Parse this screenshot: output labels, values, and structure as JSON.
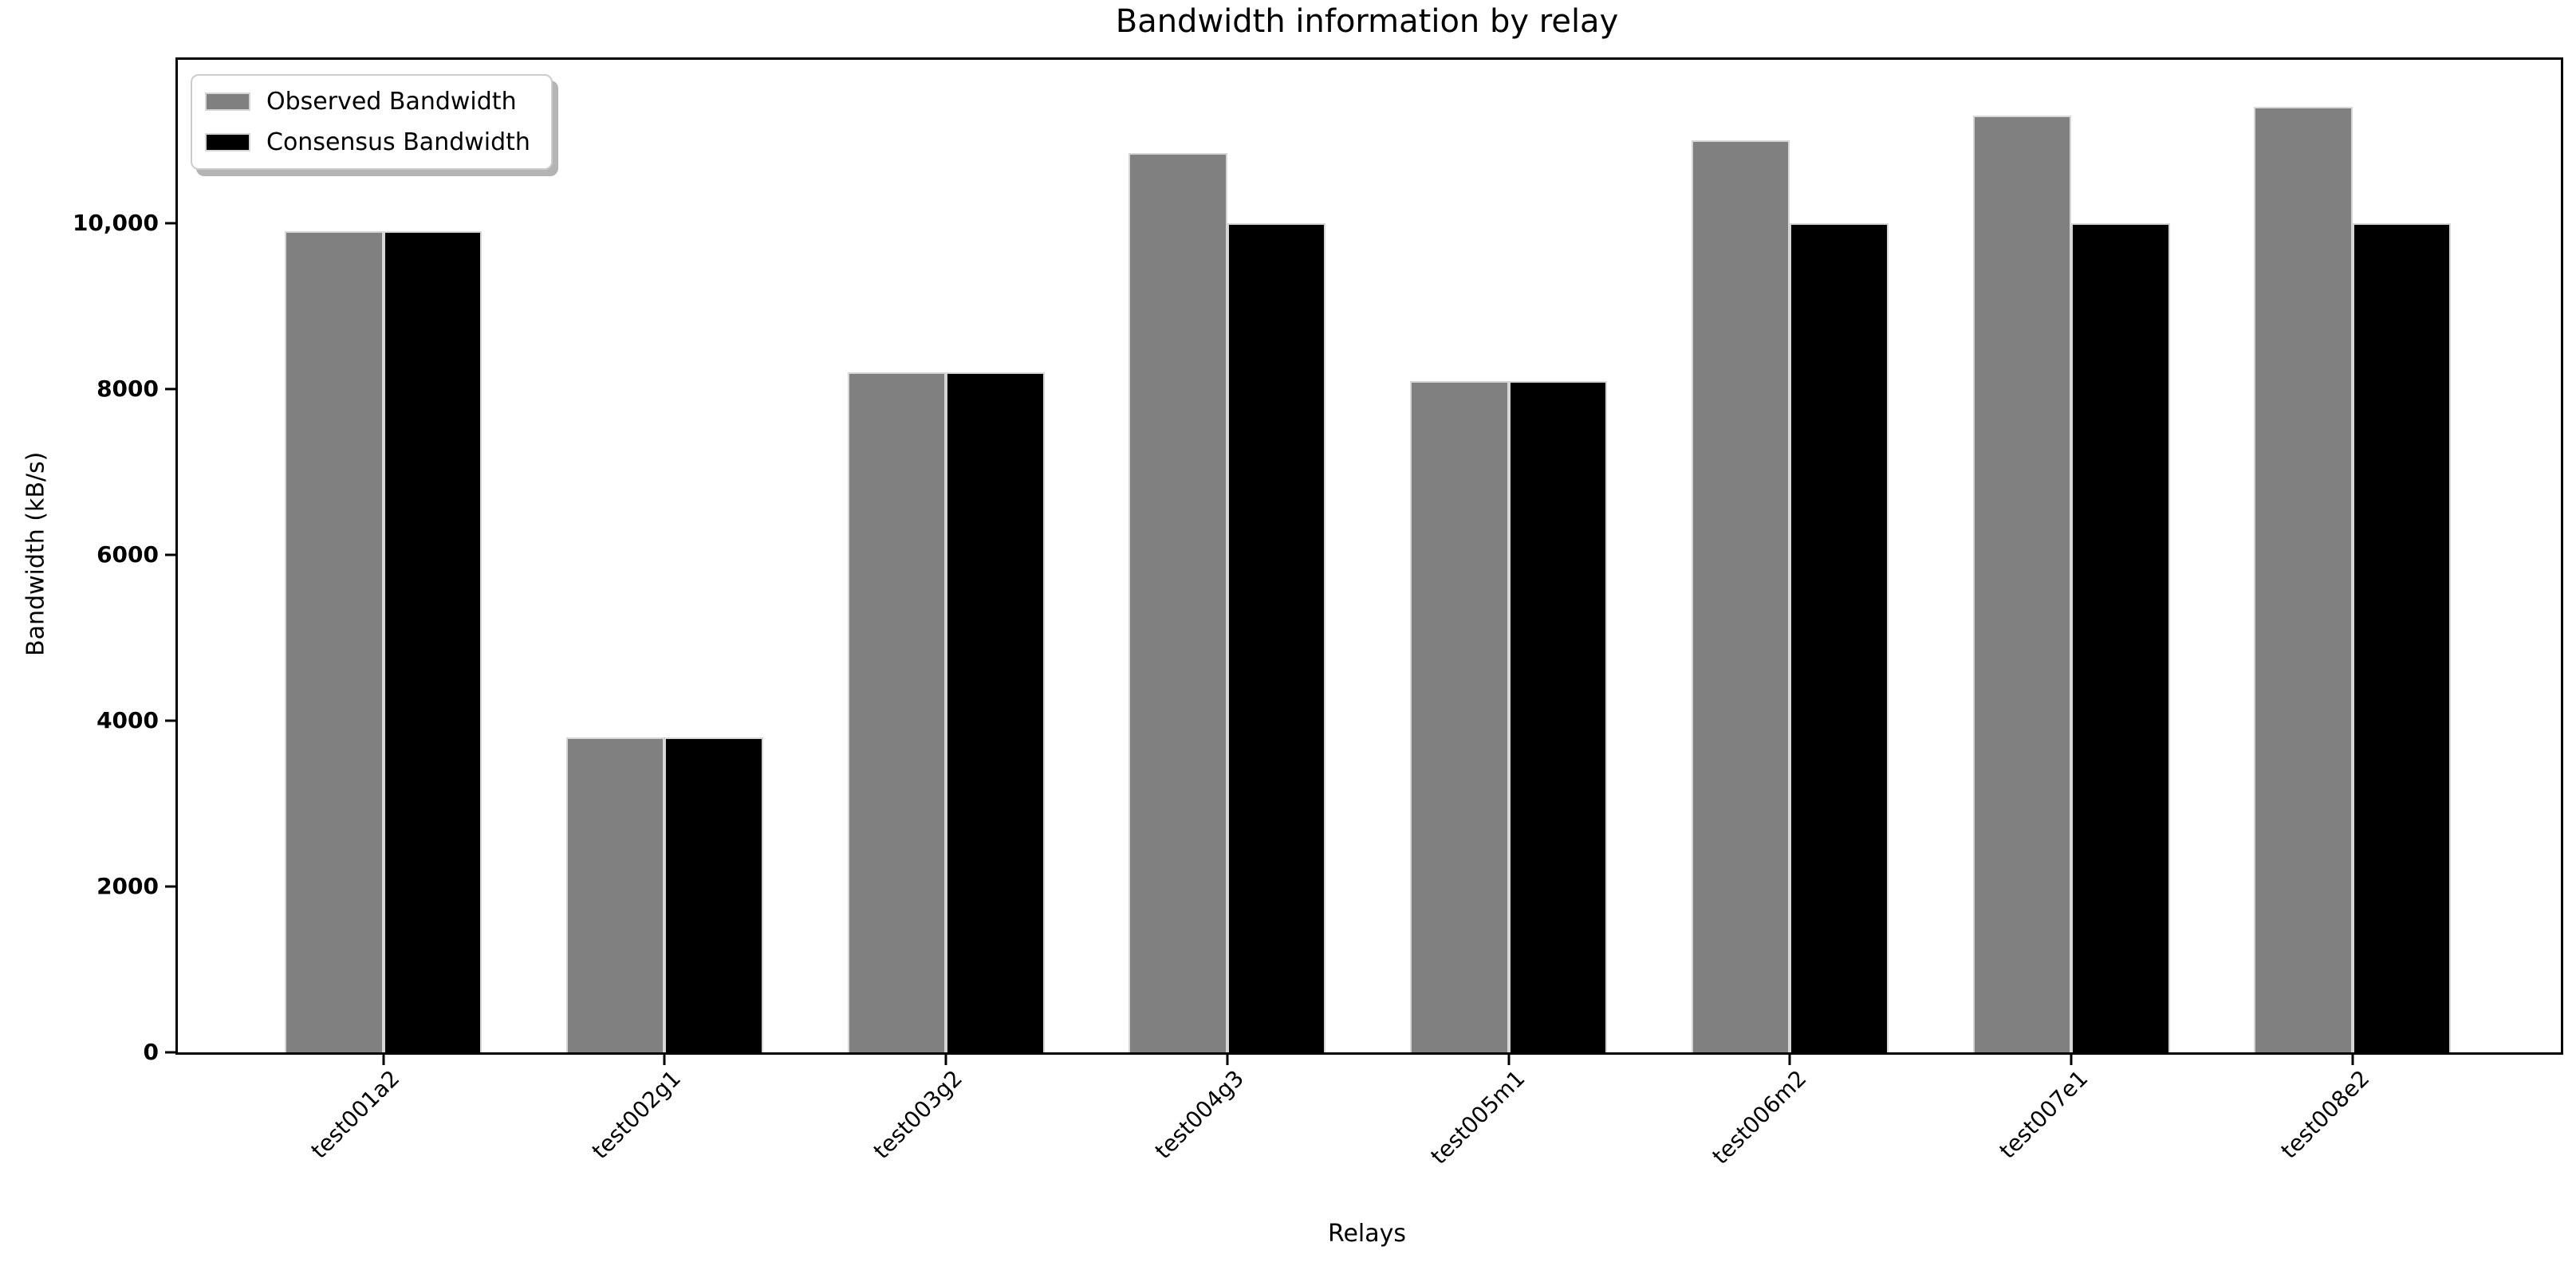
{
  "chart_data": {
    "type": "bar",
    "title": "Bandwidth information by relay",
    "xlabel": "Relays",
    "ylabel": "Bandwidth (kB/s)",
    "categories": [
      "test001a2",
      "test002g1",
      "test003g2",
      "test004g3",
      "test005m1",
      "test006m2",
      "test007e1",
      "test008e2"
    ],
    "series": [
      {
        "name": "Observed Bandwidth",
        "color": "#808080",
        "values": [
          9900,
          3800,
          8200,
          10850,
          8100,
          11000,
          11300,
          11400
        ]
      },
      {
        "name": "Consensus Bandwidth",
        "color": "#000000",
        "values": [
          9900,
          3800,
          8200,
          10000,
          8100,
          10000,
          10000,
          10000
        ]
      }
    ],
    "yticks": [
      {
        "value": 0,
        "label": "0"
      },
      {
        "value": 2000,
        "label": "2000"
      },
      {
        "value": 4000,
        "label": "4000"
      },
      {
        "value": 6000,
        "label": "6000"
      },
      {
        "value": 8000,
        "label": "8000"
      },
      {
        "value": 10000,
        "label": "10,000"
      }
    ],
    "ylim": [
      0,
      11970
    ],
    "xlim": [
      -0.73,
      7.74
    ],
    "bar_width": 0.35,
    "grid": false,
    "legend_position": "upper-left"
  }
}
